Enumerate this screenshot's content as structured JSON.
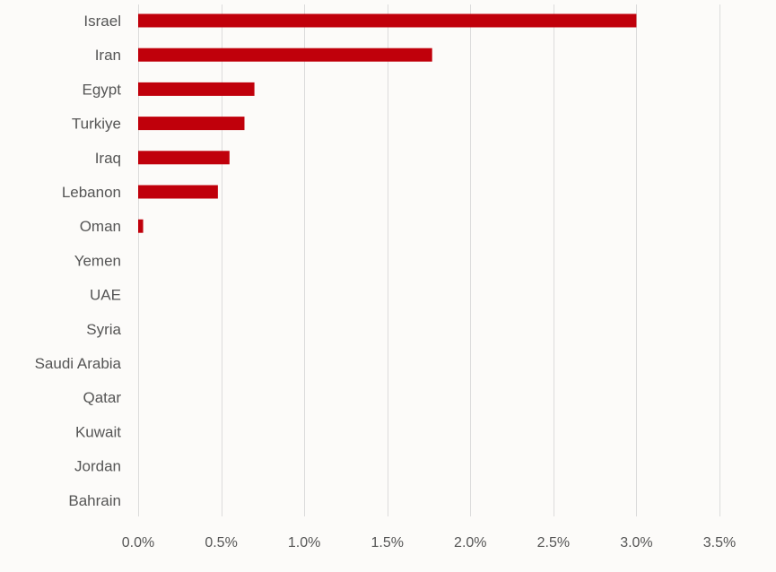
{
  "chart_data": {
    "type": "bar",
    "orientation": "horizontal",
    "categories": [
      "Israel",
      "Iran",
      "Egypt",
      "Turkiye",
      "Iraq",
      "Lebanon",
      "Oman",
      "Yemen",
      "UAE",
      "Syria",
      "Saudi Arabia",
      "Qatar",
      "Kuwait",
      "Jordan",
      "Bahrain"
    ],
    "values": [
      3.0,
      1.77,
      0.7,
      0.64,
      0.55,
      0.48,
      0.03,
      0,
      0,
      0,
      0,
      0,
      0,
      0,
      0
    ],
    "title": "",
    "xlabel": "",
    "ylabel": "",
    "xlim": [
      0,
      3.5
    ],
    "x_ticks": [
      0,
      0.5,
      1.0,
      1.5,
      2.0,
      2.5,
      3.0,
      3.5
    ],
    "x_tick_labels": [
      "0.0%",
      "0.5%",
      "1.0%",
      "1.5%",
      "2.0%",
      "2.5%",
      "3.0%",
      "3.5%"
    ],
    "grid": "vertical",
    "legend": "none",
    "colors": {
      "bar": "#c0000b",
      "background": "#fcfbf9",
      "grid": "#dcdcdc",
      "text": "#555555"
    }
  }
}
